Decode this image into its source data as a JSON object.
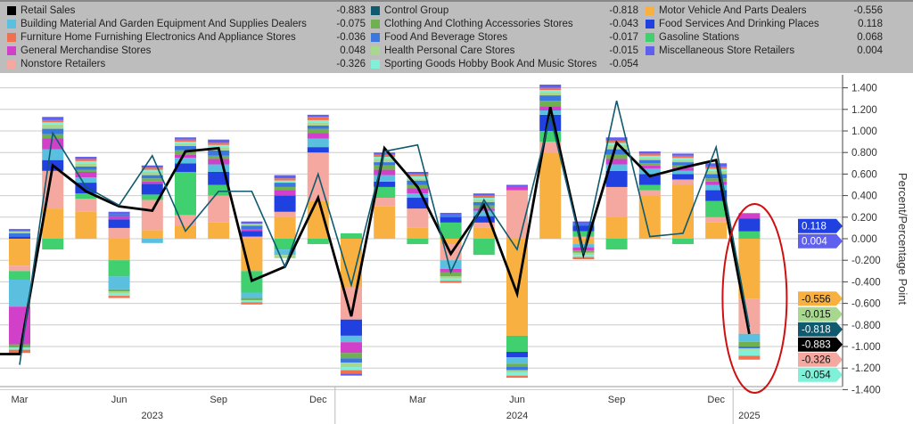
{
  "legend": [
    {
      "name": "Retail Sales",
      "value": "-0.883",
      "color": "#000000"
    },
    {
      "name": "Building Material And Garden Equipment And Supplies Dealers",
      "value": "-0.075",
      "color": "#5bc0e0"
    },
    {
      "name": "Furniture Home Furnishing Electronics And Appliance Stores",
      "value": "-0.036",
      "color": "#f07050"
    },
    {
      "name": "General Merchandise Stores",
      "value": "0.048",
      "color": "#d040c8"
    },
    {
      "name": "Nonstore Retailers",
      "value": "-0.326",
      "color": "#f4a8a0"
    },
    {
      "name": "Control Group",
      "value": "-0.818",
      "color": "#0f5a6e"
    },
    {
      "name": "Clothing And Clothing Accessories Stores",
      "value": "-0.043",
      "color": "#70b050"
    },
    {
      "name": "Food And Beverage Stores",
      "value": "-0.017",
      "color": "#3a78e0"
    },
    {
      "name": "Health Personal Care Stores",
      "value": "-0.015",
      "color": "#a8d890"
    },
    {
      "name": "Sporting Goods Hobby Book And Music Stores",
      "value": "-0.054",
      "color": "#80f0d8"
    },
    {
      "name": "Motor Vehicle And Parts Dealers",
      "value": "-0.556",
      "color": "#f8b040"
    },
    {
      "name": "Food Services And Drinking Places",
      "value": "0.118",
      "color": "#2040e0"
    },
    {
      "name": "Gasoline Stations",
      "value": "0.068",
      "color": "#40d070"
    },
    {
      "name": "Miscellaneous Store Retailers",
      "value": "0.004",
      "color": "#6060f0"
    }
  ],
  "chart_data": {
    "type": "bar",
    "ylabel": "Percent/Percentage Point",
    "ylim": [
      -1.4,
      1.4
    ],
    "yticks": [
      "1.400",
      "1.200",
      "1.000",
      "0.800",
      "0.600",
      "0.400",
      "0.200",
      "0.000",
      "-0.200",
      "-0.400",
      "-0.600",
      "-0.800",
      "-1.000",
      "-1.200",
      "-1.400"
    ],
    "months": [
      "Mar 2023",
      "Apr 2023",
      "May 2023",
      "Jun 2023",
      "Jul 2023",
      "Aug 2023",
      "Sep 2023",
      "Oct 2023",
      "Nov 2023",
      "Dec 2023",
      "Jan 2024",
      "Feb 2024",
      "Mar 2024",
      "Apr 2024",
      "May 2024",
      "Jun 2024",
      "Jul 2024",
      "Aug 2024",
      "Sep 2024",
      "Oct 2024",
      "Nov 2024",
      "Dec 2024",
      "Jan 2025"
    ],
    "xtick_labels": [
      {
        "i": 0,
        "t": "Mar"
      },
      {
        "i": 3,
        "t": "Jun"
      },
      {
        "i": 6,
        "t": "Sep"
      },
      {
        "i": 9,
        "t": "Dec"
      },
      {
        "i": 12,
        "t": "Mar"
      },
      {
        "i": 15,
        "t": "Jun"
      },
      {
        "i": 18,
        "t": "Sep"
      },
      {
        "i": 21,
        "t": "Dec"
      }
    ],
    "years": [
      {
        "t": "2023",
        "i": 4
      },
      {
        "t": "2024",
        "i": 15
      },
      {
        "t": "2025",
        "i": 22
      }
    ],
    "lines": [
      {
        "name": "Retail Sales",
        "values": [
          -1.07,
          0.68,
          0.44,
          0.3,
          0.26,
          0.81,
          0.84,
          -0.39,
          -0.26,
          0.38,
          -0.72,
          0.84,
          0.48,
          -0.14,
          0.31,
          -0.51,
          1.22,
          -0.14,
          0.89,
          0.58,
          0.66,
          0.73,
          -0.883
        ]
      },
      {
        "name": "Control Group",
        "values": [
          -1.17,
          0.98,
          0.48,
          0.31,
          0.77,
          0.07,
          0.44,
          0.44,
          -0.26,
          0.6,
          -0.43,
          0.81,
          0.87,
          -0.31,
          0.36,
          -0.1,
          1.14,
          -0.14,
          1.28,
          0.02,
          0.05,
          0.85,
          -0.818
        ]
      }
    ],
    "series": [
      {
        "name": "Motor Vehicle And Parts Dealers",
        "values": [
          -0.25,
          0.28,
          0.25,
          -0.2,
          0.08,
          0.12,
          0.15,
          -0.3,
          0.2,
          0.35,
          -0.45,
          0.3,
          0.1,
          -0.05,
          0.1,
          -0.9,
          0.8,
          -0.05,
          0.2,
          0.4,
          0.5,
          0.15,
          -0.556
        ]
      },
      {
        "name": "Nonstore Retailers",
        "values": [
          -0.05,
          0.35,
          0.12,
          0.1,
          0.28,
          0.1,
          0.25,
          0.02,
          0.05,
          0.45,
          -0.3,
          0.08,
          0.18,
          -0.15,
          0.05,
          0.45,
          0.1,
          0.02,
          0.28,
          0.05,
          0.05,
          0.05,
          -0.326
        ]
      },
      {
        "name": "Gasoline Stations",
        "values": [
          -0.08,
          -0.1,
          0.05,
          -0.15,
          0.05,
          0.4,
          0.1,
          -0.2,
          -0.1,
          -0.05,
          0.05,
          0.1,
          -0.05,
          0.15,
          -0.15,
          -0.15,
          0.1,
          0.05,
          -0.1,
          0.05,
          -0.05,
          0.15,
          0.068
        ]
      },
      {
        "name": "Food Services And Drinking Places",
        "values": [
          0.02,
          0.1,
          0.1,
          0.08,
          0.1,
          0.08,
          0.12,
          0.05,
          0.15,
          0.05,
          -0.15,
          0.05,
          0.1,
          0.05,
          0.06,
          -0.05,
          0.15,
          0.05,
          0.15,
          0.1,
          0.05,
          0.1,
          0.118
        ]
      },
      {
        "name": "Building Material And Garden Equipment And Supplies Dealers",
        "values": [
          -0.25,
          0.1,
          0.05,
          -0.12,
          -0.04,
          0.05,
          0.07,
          -0.05,
          -0.05,
          0.08,
          -0.06,
          0.06,
          0.04,
          -0.08,
          0.05,
          -0.06,
          0.04,
          -0.03,
          0.06,
          0.05,
          0.03,
          0.05,
          -0.075
        ]
      },
      {
        "name": "General Merchandise Stores",
        "values": [
          -0.35,
          0.1,
          0.05,
          0.03,
          0.02,
          0.03,
          0.05,
          0.02,
          0.05,
          0.05,
          -0.1,
          0.05,
          0.05,
          -0.03,
          0.02,
          0.03,
          0.04,
          -0.03,
          0.05,
          0.03,
          0.03,
          0.03,
          0.048
        ]
      },
      {
        "name": "Clothing And Clothing Accessories Stores",
        "values": [
          -0.03,
          0.04,
          0.02,
          -0.02,
          0.03,
          0.04,
          0.03,
          -0.02,
          0.03,
          0.04,
          -0.05,
          0.04,
          0.03,
          -0.04,
          0.03,
          -0.03,
          0.05,
          -0.02,
          0.04,
          0.02,
          0.02,
          0.03,
          -0.043
        ]
      },
      {
        "name": "Food And Beverage Stores",
        "values": [
          0.03,
          0.05,
          0.03,
          0.02,
          0.03,
          0.04,
          0.05,
          0.03,
          0.04,
          0.03,
          -0.04,
          0.03,
          0.04,
          0.02,
          0.03,
          -0.03,
          0.05,
          0.02,
          0.05,
          0.03,
          0.03,
          0.04,
          -0.017
        ]
      },
      {
        "name": "Health Personal Care Stores",
        "values": [
          0.02,
          0.04,
          0.03,
          -0.02,
          0.03,
          0.02,
          0.03,
          0.02,
          -0.03,
          0.03,
          -0.04,
          0.03,
          0.02,
          -0.02,
          0.02,
          -0.02,
          0.03,
          -0.02,
          0.04,
          0.02,
          0.02,
          0.03,
          -0.015
        ]
      },
      {
        "name": "Sporting Goods Hobby Book And Music Stores",
        "values": [
          -0.02,
          0.02,
          0.02,
          -0.02,
          0.02,
          0.02,
          0.02,
          -0.02,
          0.02,
          0.02,
          -0.03,
          0.02,
          0.02,
          -0.02,
          0.02,
          -0.03,
          0.02,
          -0.02,
          0.02,
          0.02,
          0.02,
          0.02,
          -0.054
        ]
      },
      {
        "name": "Furniture Home Furnishing Electronics And Appliance Stores",
        "values": [
          -0.03,
          0.02,
          0.02,
          -0.02,
          0.02,
          0.02,
          0.02,
          -0.02,
          0.02,
          0.03,
          -0.03,
          0.02,
          0.02,
          -0.02,
          0.02,
          -0.02,
          0.02,
          -0.02,
          0.02,
          0.02,
          0.02,
          0.02,
          -0.036
        ]
      },
      {
        "name": "Miscellaneous Store Retailers",
        "values": [
          0.02,
          0.03,
          0.02,
          0.02,
          0.02,
          0.02,
          0.03,
          0.02,
          0.03,
          0.02,
          -0.02,
          0.02,
          0.02,
          0.02,
          0.02,
          0.02,
          0.03,
          0.02,
          0.03,
          0.02,
          0.02,
          0.03,
          0.004
        ]
      }
    ],
    "flags": [
      {
        "value": "0.004",
        "color": "#6060f0",
        "y": 0.004
      },
      {
        "value": "0.118",
        "color": "#2040e0",
        "y": 0.118
      },
      {
        "value": "-0.556",
        "color": "#f8b040",
        "y": -0.556
      },
      {
        "value": "-0.015",
        "color": "#a8d890",
        "y": -0.7
      },
      {
        "value": "-0.818",
        "color": "#0f5a6e",
        "y": -0.818
      },
      {
        "value": "-0.883",
        "color": "#000000",
        "y": -0.883
      },
      {
        "value": "-0.326",
        "color": "#f4a8a0",
        "y": -1.02
      },
      {
        "value": "-0.054",
        "color": "#80f0d8",
        "y": -1.09
      }
    ]
  }
}
